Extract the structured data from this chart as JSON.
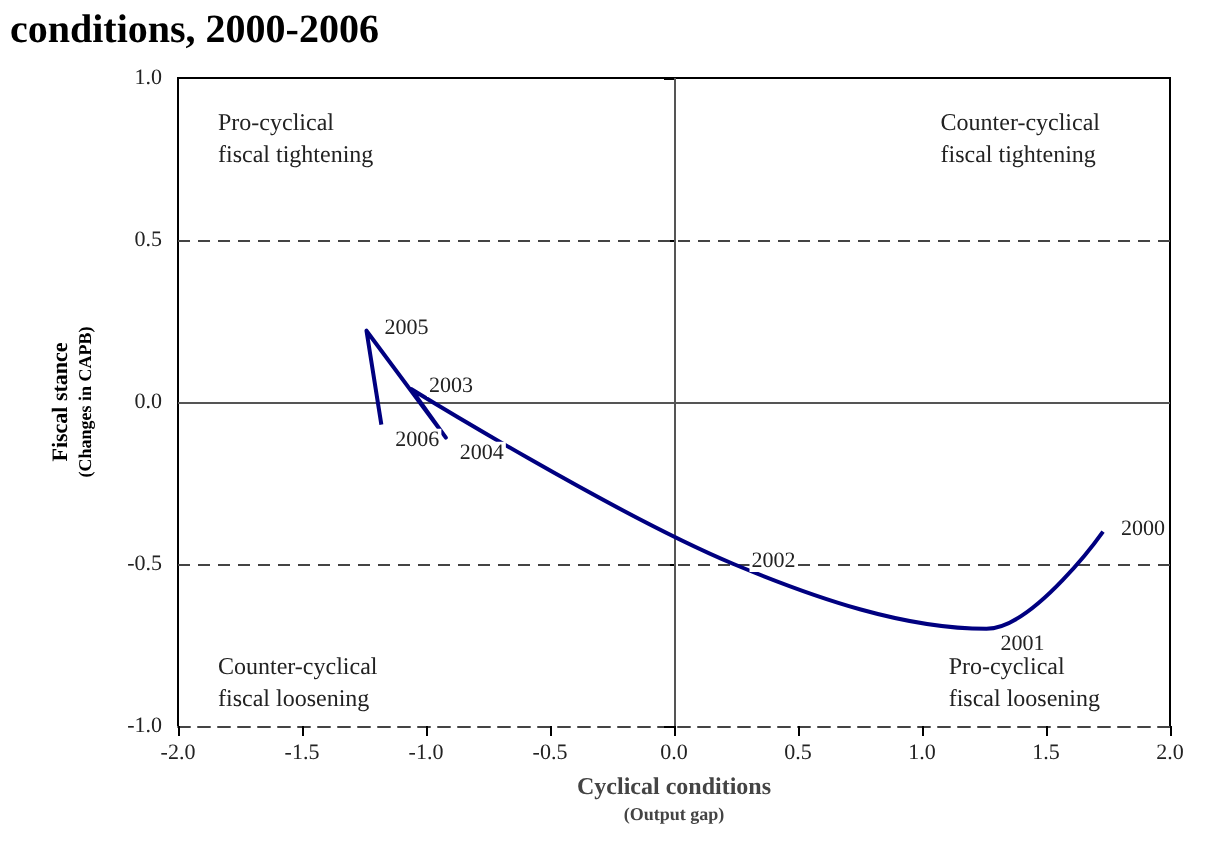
{
  "chart_data": {
    "type": "line",
    "title": "conditions, 2000-2006",
    "xlabel": "Cyclical conditions\n(Output gap)",
    "ylabel": "Fiscal stance\n(Changes in CAPB)",
    "annotations": [
      "Pro-cyclical\nfiscal tightening",
      "Counter-cyclical\nfiscal tightening",
      "Counter-cyclical\nfiscal loosening",
      "Pro-cyclical\nfiscal loosening",
      {
        "text": "2000",
        "x": 1.73,
        "y": -0.4
      },
      {
        "text": "2001",
        "x": 1.26,
        "y": -0.7
      },
      {
        "text": "2002",
        "x": 0.24,
        "y": -0.5
      },
      {
        "text": "2003",
        "x": -1.06,
        "y": 0.04
      },
      {
        "text": "2004",
        "x": -0.92,
        "y": -0.11
      },
      {
        "text": "2005",
        "x": -1.24,
        "y": 0.22
      },
      {
        "text": "2006",
        "x": -1.18,
        "y": -0.07
      }
    ],
    "xlim": [
      -2,
      2
    ],
    "xticks": [
      {
        "value": -2,
        "label": "-2.0"
      },
      {
        "value": -1.5,
        "label": "-1.5"
      },
      {
        "value": -1,
        "label": "-1.0"
      },
      {
        "value": -0.5,
        "label": "-0.5"
      },
      {
        "value": 0,
        "label": "0.0"
      },
      {
        "value": 0.5,
        "label": "0.5"
      },
      {
        "value": 1,
        "label": "1.0"
      },
      {
        "value": 1.5,
        "label": "1.5"
      },
      {
        "value": 2,
        "label": "2.0"
      }
    ],
    "ylim": [
      -1,
      1
    ],
    "yticks": [
      {
        "value": -1,
        "label": "-1.0"
      },
      {
        "value": -0.5,
        "label": "-0.5"
      },
      {
        "value": 0,
        "label": "0.0"
      },
      {
        "value": 0.5,
        "label": "0.5"
      },
      {
        "value": 1,
        "label": "1.0"
      }
    ],
    "series": [
      {
        "color": "#000080",
        "x": [
          1.73,
          1.26,
          0.24,
          -1.06,
          -0.92,
          -1.24,
          -1.18
        ],
        "values": [
          -0.4,
          -0.7,
          -0.5,
          0.04,
          -0.11,
          0.22,
          -0.07
        ]
      }
    ],
    "ref_lines": [
      {
        "axis": "y",
        "value": 0,
        "line_style": "solid"
      },
      {
        "axis": "x",
        "value": 0,
        "line_style": "solid"
      },
      {
        "axis": "y",
        "value": 0.5,
        "line_style": "dashed"
      },
      {
        "axis": "y",
        "value": -0.5,
        "line_style": "dashed"
      }
    ],
    "grid": false,
    "marker": "none",
    "line_style": "solid"
  }
}
